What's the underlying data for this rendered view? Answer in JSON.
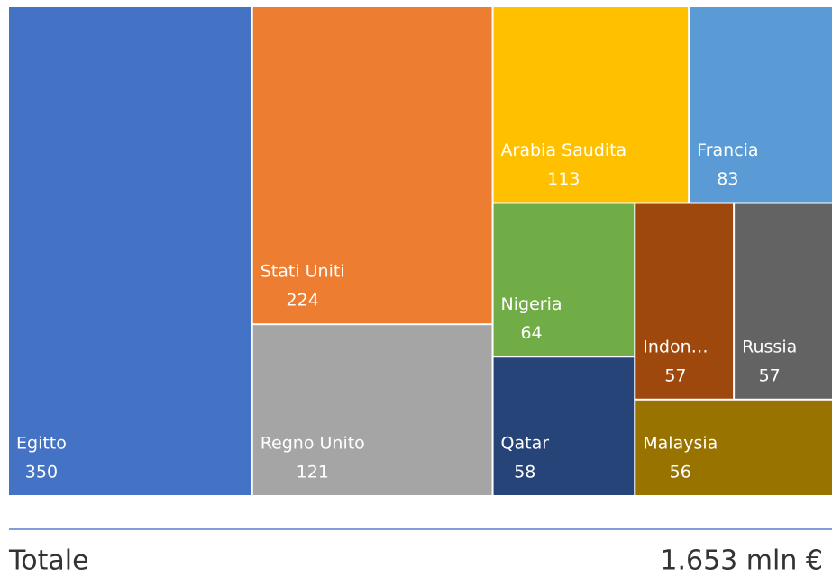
{
  "chart_data": {
    "type": "treemap",
    "categories": [
      "Egitto",
      "Stati Uniti",
      "Regno Unito",
      "Arabia Saudita",
      "Francia",
      "Nigeria",
      "Qatar",
      "Indon…",
      "Russia",
      "Malaysia"
    ],
    "values": [
      350,
      224,
      121,
      113,
      83,
      64,
      58,
      57,
      57,
      56
    ],
    "colors": [
      "#4472c4",
      "#ed7d31",
      "#a5a5a5",
      "#ffc000",
      "#5b9bd5",
      "#70ad47",
      "#264478",
      "#9e480e",
      "#636363",
      "#997300"
    ],
    "total_label": "Totale",
    "total_value": "1.653 mln €"
  }
}
